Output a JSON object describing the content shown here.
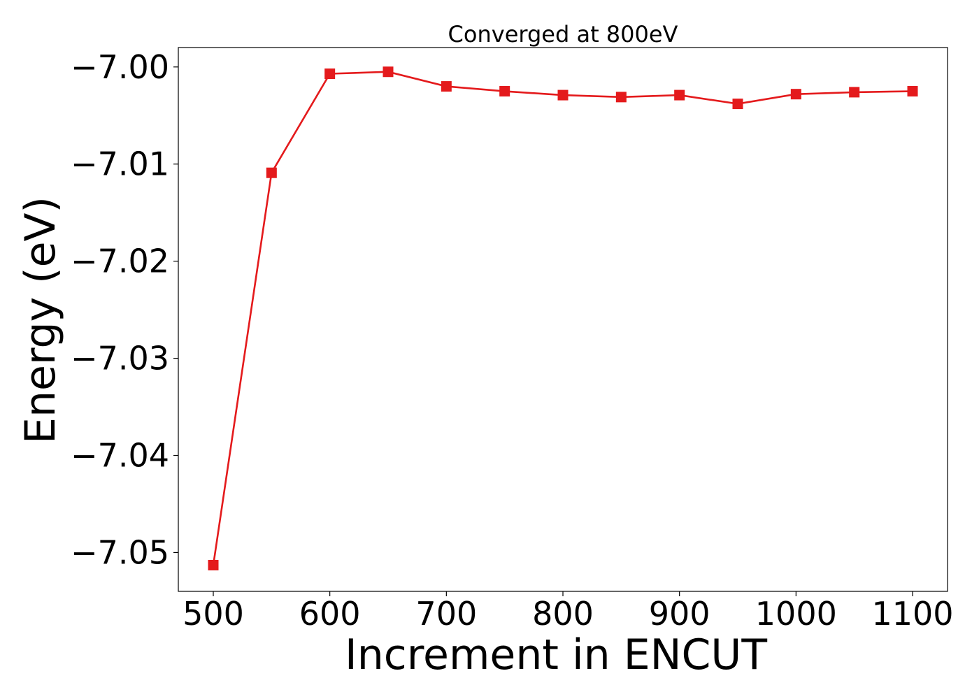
{
  "chart_data": {
    "type": "line",
    "title": "Converged at 800eV",
    "xlabel": "Increment in ENCUT",
    "ylabel": "Energy (eV)",
    "x": [
      500,
      550,
      600,
      650,
      700,
      750,
      800,
      850,
      900,
      950,
      1000,
      1050,
      1100
    ],
    "series": [
      {
        "name": "",
        "color": "#e41a1c",
        "marker": "square",
        "values": [
          -7.0513,
          -7.0109,
          -7.0007,
          -7.0005,
          -7.002,
          -7.0025,
          -7.0029,
          -7.0031,
          -7.0029,
          -7.0038,
          -7.0028,
          -7.0026,
          -7.0025
        ]
      }
    ],
    "xticks": [
      500,
      600,
      700,
      800,
      900,
      1000,
      1100
    ],
    "xtick_labels": [
      "500",
      "600",
      "700",
      "800",
      "900",
      "1000",
      "1100"
    ],
    "yticks": [
      -7.0,
      -7.01,
      -7.02,
      -7.03,
      -7.04,
      -7.05
    ],
    "ytick_labels": [
      "−7.00",
      "−7.01",
      "−7.02",
      "−7.03",
      "−7.04",
      "−7.05"
    ],
    "xlim": [
      470,
      1130
    ],
    "ylim": [
      -7.054,
      -6.998
    ],
    "grid": false,
    "legend": "none"
  }
}
